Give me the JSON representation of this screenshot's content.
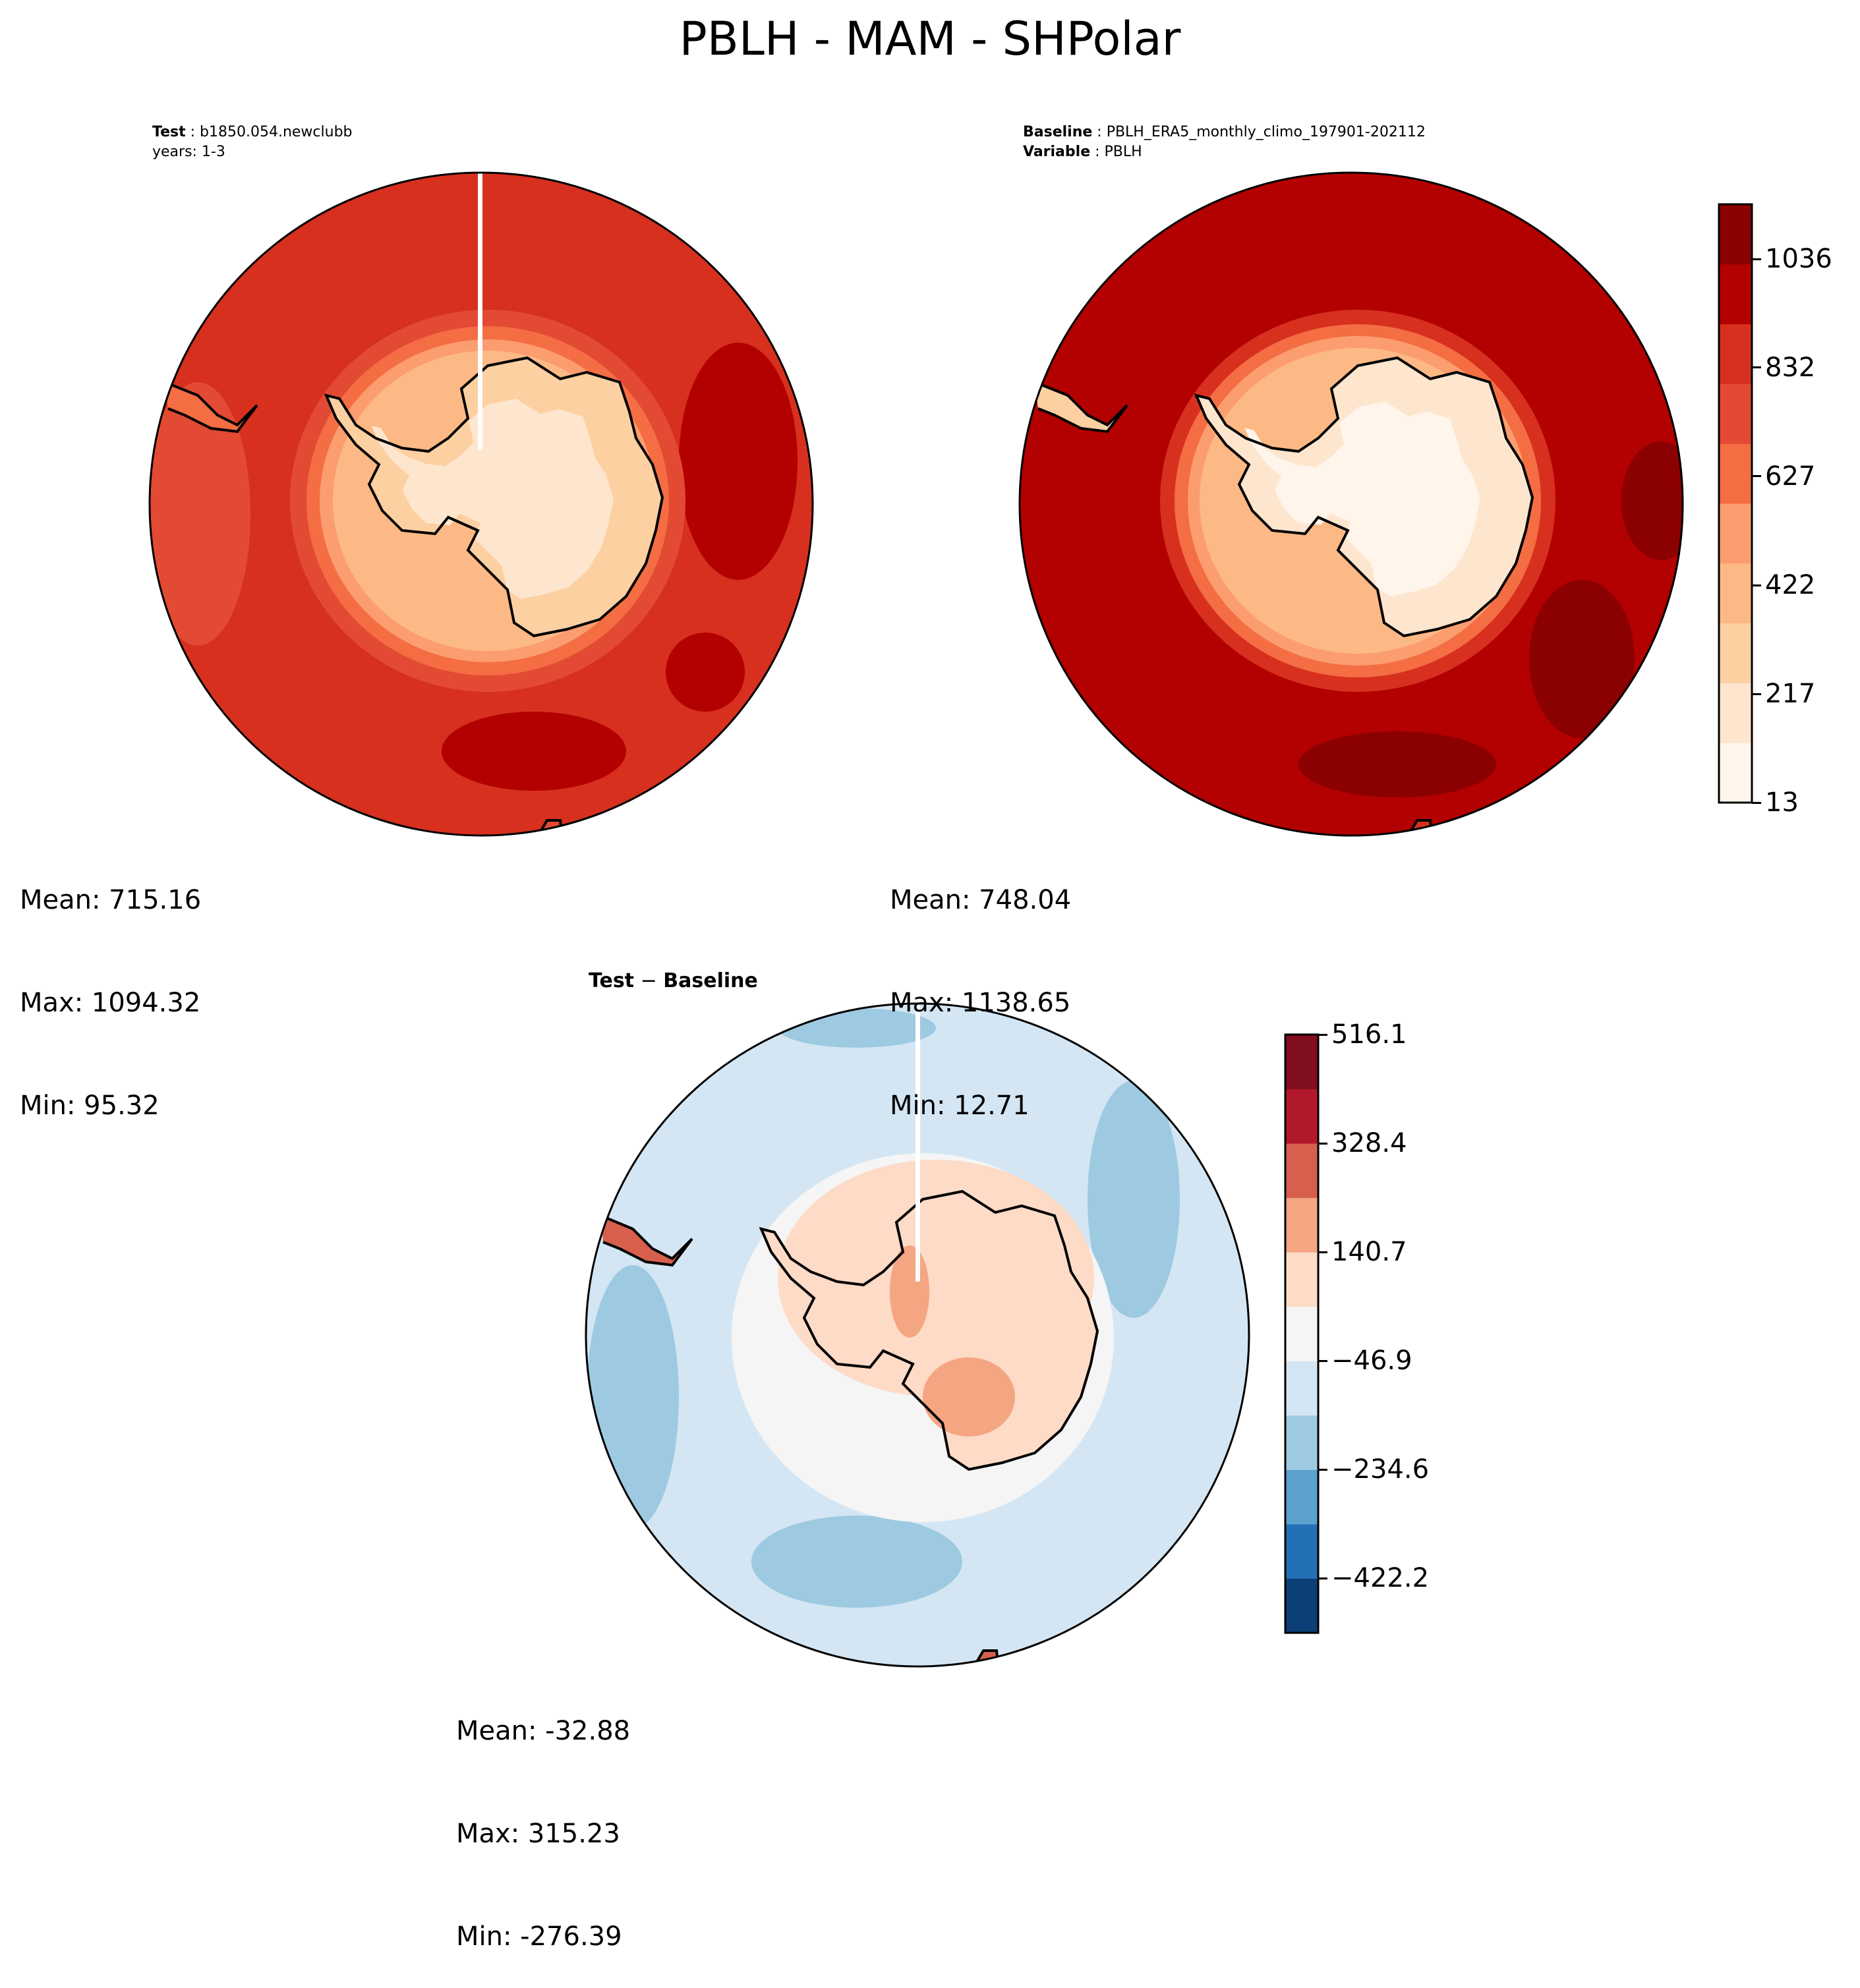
{
  "figure": {
    "title": "PBLH - MAM - SHPolar"
  },
  "panels": {
    "test": {
      "label_bold": "Test",
      "label_rest": " : b1850.054.newclubb",
      "line2": "years: 1-3",
      "mean": "Mean: 715.16",
      "max": "Max: 1094.32",
      "min": "Min: 95.32"
    },
    "baseline": {
      "label_bold": "Baseline",
      "label_rest": " : PBLH_ERA5_monthly_climo_197901-202112",
      "line2_bold": "Variable",
      "line2_rest": " : PBLH",
      "mean": "Mean: 748.04",
      "max": "Max: 1138.65",
      "min": "Min: 12.71"
    },
    "diff": {
      "label_a": "Test",
      "label_b": " − ",
      "label_c": "Baseline",
      "mean": "Mean: -32.88",
      "max": "Max: 315.23",
      "min": "Min: -276.39"
    }
  },
  "colorbars": {
    "main": {
      "ticks": [
        "1036",
        "832",
        "627",
        "422",
        "217",
        "13"
      ],
      "tick_values": [
        1036,
        832,
        627,
        422,
        217,
        13
      ],
      "range": [
        13,
        1139
      ],
      "colors": [
        "#fff5eb",
        "#fee6ce",
        "#fdd0a2",
        "#fdb985",
        "#fc9d6f",
        "#f46d43",
        "#e34a33",
        "#d7301f",
        "#b30000",
        "#8b0000"
      ]
    },
    "diff": {
      "ticks": [
        "516.1",
        "328.4",
        "140.7",
        "−46.9",
        "−234.6",
        "−422.2"
      ],
      "tick_values": [
        516.1,
        328.4,
        140.7,
        -46.9,
        -234.6,
        -422.2
      ],
      "range": [
        -516.1,
        516.1
      ],
      "colors": [
        "#0b3f76",
        "#2370b5",
        "#5ba2ce",
        "#9ecae1",
        "#d4e6f3",
        "#f5f5f5",
        "#fddbc7",
        "#f4a582",
        "#d6604d",
        "#b2182b",
        "#800d20"
      ]
    }
  },
  "colors": {
    "ocean_test": "#d7301f",
    "ocean_base": "#b30000",
    "ocean_diff": "#d4e6f3",
    "coast": "#000000"
  }
}
